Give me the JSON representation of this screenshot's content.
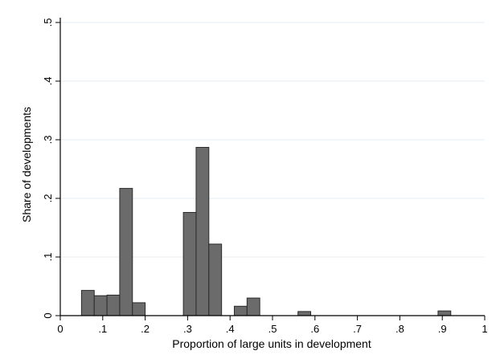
{
  "chart_data": {
    "type": "bar",
    "title": "",
    "xlabel": "Proportion of large units in development",
    "ylabel": "Share of developments",
    "xlim": [
      0,
      1
    ],
    "ylim": [
      0,
      0.5
    ],
    "xticks": [
      "0",
      ".1",
      ".2",
      ".3",
      ".4",
      ".5",
      ".6",
      ".7",
      ".8",
      ".9",
      "1"
    ],
    "yticks": [
      "0",
      ".1",
      ".2",
      ".3",
      ".4",
      ".5"
    ],
    "grid": true,
    "bin_width": 0.03,
    "bins": [
      {
        "x0": 0.05,
        "value": 0.043
      },
      {
        "x0": 0.08,
        "value": 0.034
      },
      {
        "x0": 0.11,
        "value": 0.035
      },
      {
        "x0": 0.14,
        "value": 0.217
      },
      {
        "x0": 0.17,
        "value": 0.022
      },
      {
        "x0": 0.29,
        "value": 0.176
      },
      {
        "x0": 0.32,
        "value": 0.287
      },
      {
        "x0": 0.35,
        "value": 0.122
      },
      {
        "x0": 0.41,
        "value": 0.016
      },
      {
        "x0": 0.44,
        "value": 0.03
      },
      {
        "x0": 0.56,
        "value": 0.007
      },
      {
        "x0": 0.89,
        "value": 0.008
      }
    ],
    "colors": {
      "bar_fill": "#6b6b6b",
      "bar_stroke": "#2b2b2b",
      "grid": "#e7eef2",
      "axis": "#000000",
      "text": "#000000"
    }
  }
}
